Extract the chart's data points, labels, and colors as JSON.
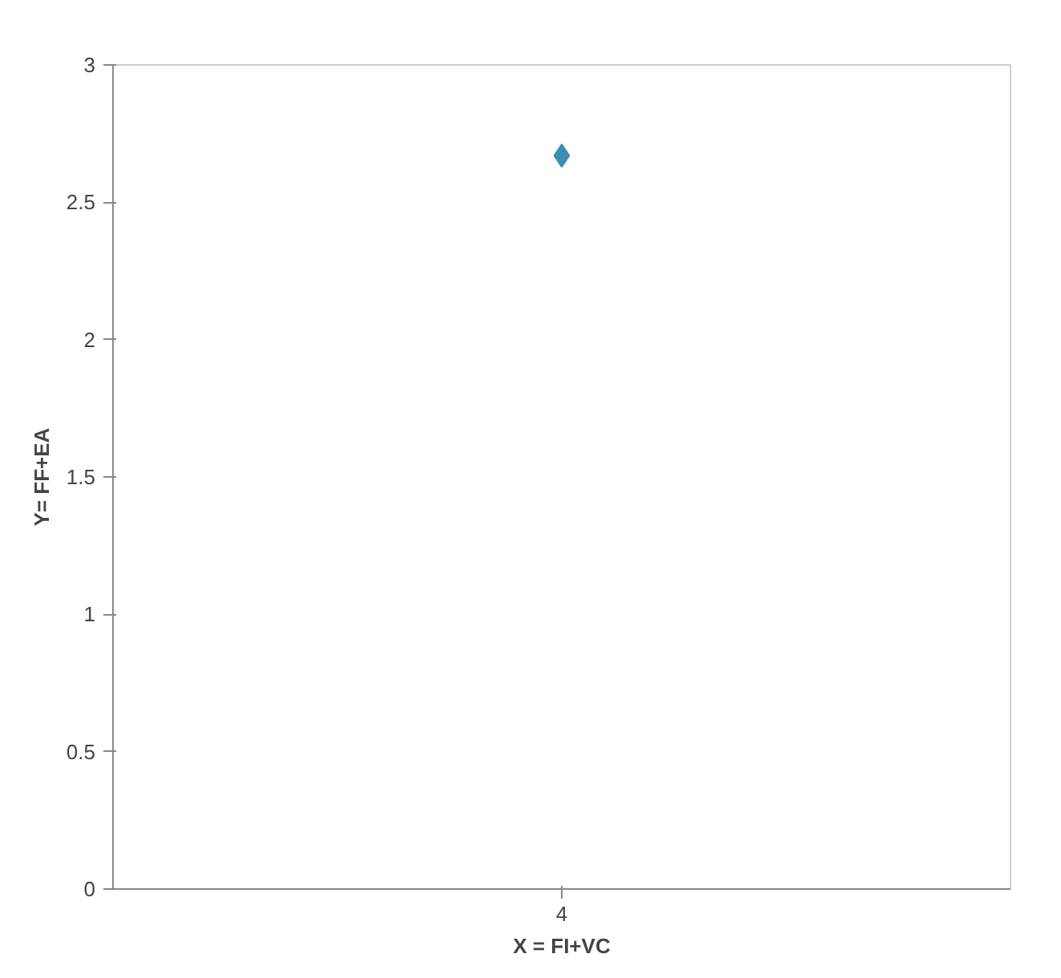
{
  "chart_data": {
    "type": "scatter",
    "xlabel": "X = FI+VC",
    "ylabel": "Y= FF+EA",
    "categories": [
      "4"
    ],
    "series": [
      {
        "color": "#3d8fb0",
        "values": [
          2.67
        ]
      }
    ],
    "ylim": [
      0,
      3
    ],
    "yticks": [
      0,
      0.5,
      1,
      1.5,
      2,
      2.5,
      3
    ],
    "marker": "diamond"
  }
}
